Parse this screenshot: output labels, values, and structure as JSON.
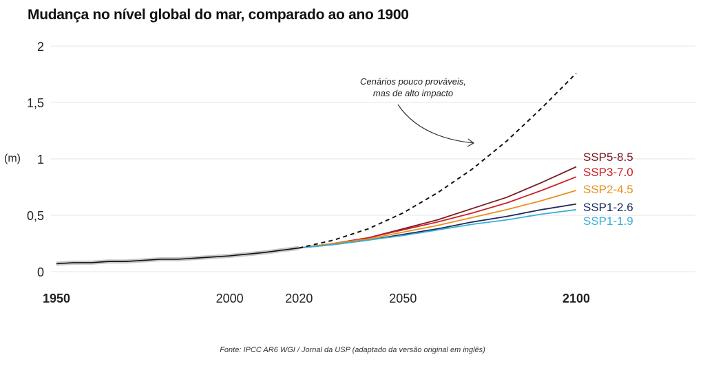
{
  "title": "Mudança no nível global do mar, comparado ao ano 1900",
  "source": "Fonte: IPCC AR6 WGI / Jornal da USP (adaptado da versão original em inglês)",
  "chart_data": {
    "type": "line",
    "title": "Mudança no nível global do mar, comparado ao ano 1900",
    "ylabel": "(m)",
    "xlabel": "",
    "xlim": [
      1950,
      2100
    ],
    "ylim": [
      0,
      2
    ],
    "y_ticks": [
      {
        "value": 0,
        "label": "0"
      },
      {
        "value": 0.5,
        "label": "0,5"
      },
      {
        "value": 1,
        "label": "1"
      },
      {
        "value": 1.5,
        "label": "1,5"
      },
      {
        "value": 2,
        "label": "2"
      }
    ],
    "x_ticks": [
      {
        "value": 1950,
        "label": "1950",
        "bold": true
      },
      {
        "value": 2000,
        "label": "2000",
        "bold": false
      },
      {
        "value": 2020,
        "label": "2020",
        "bold": false
      },
      {
        "value": 2050,
        "label": "2050",
        "bold": false
      },
      {
        "value": 2100,
        "label": "2100",
        "bold": true
      }
    ],
    "grid": "horizontal",
    "annotation": {
      "lines": [
        "Cenários pouco prováveis,",
        "mas de alto impacto"
      ]
    },
    "observed": {
      "x": [
        1950,
        1955,
        1960,
        1965,
        1970,
        1975,
        1980,
        1985,
        1990,
        1995,
        2000,
        2005,
        2010,
        2015,
        2020
      ],
      "y": [
        0.07,
        0.08,
        0.08,
        0.09,
        0.09,
        0.1,
        0.11,
        0.11,
        0.12,
        0.13,
        0.14,
        0.155,
        0.17,
        0.19,
        0.21
      ],
      "color": "#111111"
    },
    "series": [
      {
        "name": "SSP5-8.5",
        "color": "#7a1a22",
        "x": [
          2020,
          2030,
          2040,
          2050,
          2060,
          2070,
          2080,
          2090,
          2100
        ],
        "y": [
          0.21,
          0.25,
          0.3,
          0.38,
          0.46,
          0.56,
          0.66,
          0.79,
          0.93
        ]
      },
      {
        "name": "SSP3-7.0",
        "color": "#cc2027",
        "x": [
          2020,
          2030,
          2040,
          2050,
          2060,
          2070,
          2080,
          2090,
          2100
        ],
        "y": [
          0.21,
          0.25,
          0.3,
          0.37,
          0.44,
          0.52,
          0.61,
          0.72,
          0.84
        ]
      },
      {
        "name": "SSP2-4.5",
        "color": "#e8901c",
        "x": [
          2020,
          2030,
          2040,
          2050,
          2060,
          2070,
          2080,
          2090,
          2100
        ],
        "y": [
          0.21,
          0.25,
          0.29,
          0.35,
          0.41,
          0.48,
          0.55,
          0.63,
          0.72
        ]
      },
      {
        "name": "SSP1-2.6",
        "color": "#1c2a5c",
        "x": [
          2020,
          2030,
          2040,
          2050,
          2060,
          2070,
          2080,
          2090,
          2100
        ],
        "y": [
          0.21,
          0.24,
          0.28,
          0.33,
          0.38,
          0.44,
          0.49,
          0.55,
          0.6
        ]
      },
      {
        "name": "SSP1-1.9",
        "color": "#3ab0d8",
        "x": [
          2020,
          2030,
          2040,
          2050,
          2060,
          2070,
          2080,
          2090,
          2100
        ],
        "y": [
          0.21,
          0.24,
          0.28,
          0.32,
          0.37,
          0.42,
          0.46,
          0.51,
          0.55
        ]
      },
      {
        "name": "",
        "dashed": true,
        "color": "#111111",
        "x": [
          2020,
          2030,
          2040,
          2050,
          2060,
          2070,
          2080,
          2090,
          2100
        ],
        "y": [
          0.21,
          0.28,
          0.38,
          0.52,
          0.7,
          0.91,
          1.16,
          1.45,
          1.76
        ]
      }
    ]
  }
}
